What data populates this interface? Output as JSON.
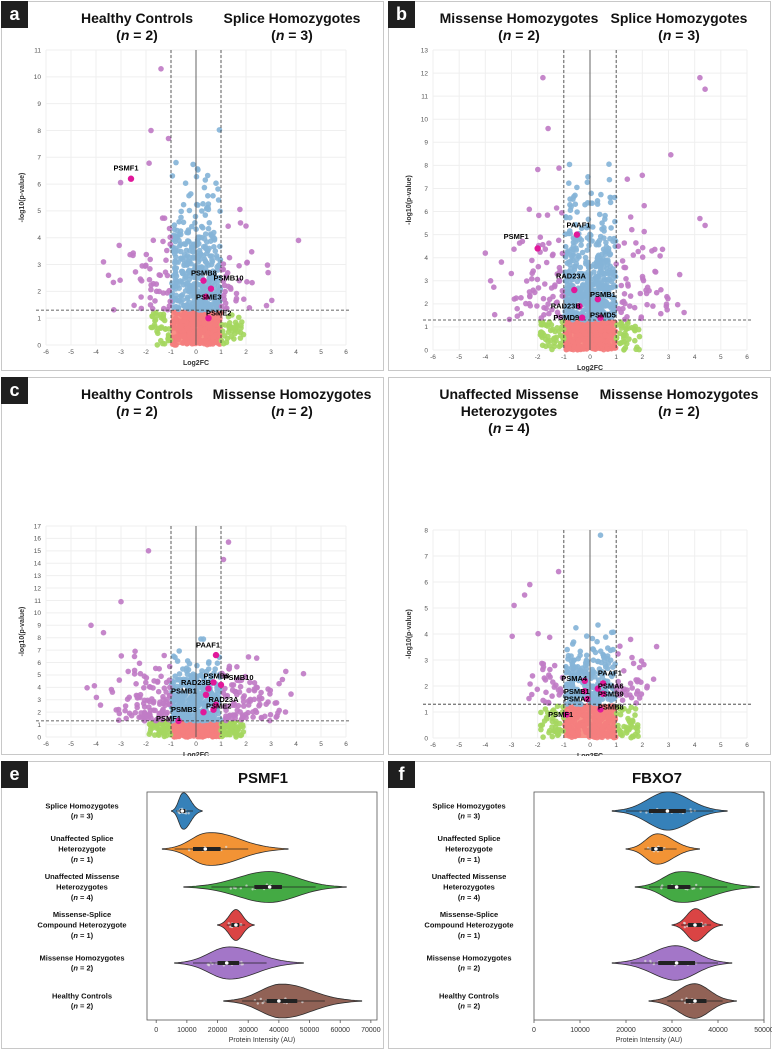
{
  "panels": [
    {
      "id": "a",
      "label": "a",
      "left": {
        "line1": "Healthy Controls",
        "n": "2"
      },
      "right": {
        "line1": "Splice Homozygotes",
        "n": "3"
      }
    },
    {
      "id": "b",
      "label": "b",
      "left": {
        "line1": "Missense Homozygotes",
        "n": "2"
      },
      "right": {
        "line1": "Splice Homozygotes",
        "n": "3"
      }
    },
    {
      "id": "c",
      "label": "c",
      "left": {
        "line1": "Healthy Controls",
        "n": "2"
      },
      "right": {
        "line1": "Missense Homozygotes",
        "n": "2"
      }
    },
    {
      "id": "d",
      "label": "",
      "left": {
        "line1": "Unaffected Missense",
        "line2": "Heterozygotes",
        "n": "4"
      },
      "right": {
        "line1": "Missense Homozygotes",
        "n": "2"
      }
    },
    {
      "id": "e",
      "label": "e"
    },
    {
      "id": "f",
      "label": "f"
    }
  ],
  "colors": {
    "sig": "#c07cc5",
    "fc": "#86b4d8",
    "pv": "#a5d75f",
    "none": "#f47e7e",
    "none_bg": "#f7857a",
    "hl": "#e1189a",
    "hl_label": "#000000"
  },
  "chart_data": [
    {
      "type": "scatter",
      "panel": "a",
      "xlabel": "Log2FC",
      "ylabel": "-log10(p-value)",
      "xlim": [
        -6,
        6
      ],
      "ylim": [
        0,
        11
      ],
      "xticks": [
        -6,
        -5,
        -4,
        -3,
        -2,
        -1,
        0,
        1,
        2,
        3,
        4,
        5,
        6
      ],
      "yticks": [
        0,
        1,
        2,
        3,
        4,
        5,
        6,
        7,
        8,
        9,
        10,
        11
      ],
      "fc_threshold": 1,
      "p_threshold": 1.3,
      "spread": [
        1.7,
        2.4
      ],
      "seed": 11,
      "n_blue": 420,
      "n_purple": 90,
      "n_green": 70,
      "n_red": 320,
      "highlights": [
        {
          "label": "PSMF1",
          "x": -2.6,
          "y": 6.2,
          "lx": -3.3,
          "ly": 6.5
        },
        {
          "label": "PSMB8",
          "x": 0.3,
          "y": 2.4,
          "lx": -0.2,
          "ly": 2.6
        },
        {
          "label": "PSMB10",
          "x": 0.6,
          "y": 2.1,
          "lx": 0.7,
          "ly": 2.4
        },
        {
          "label": "PSME3",
          "x": 0.4,
          "y": 1.8,
          "lx": 0.0,
          "ly": 1.7
        },
        {
          "label": "PSME2",
          "x": 0.5,
          "y": 1.0,
          "lx": 0.4,
          "ly": 1.1
        }
      ],
      "outliers": [
        [
          -1.4,
          10.3
        ],
        [
          -1.8,
          8.0
        ],
        [
          -1.1,
          7.7
        ],
        [
          -0.8,
          6.8
        ],
        [
          4.1,
          3.9
        ],
        [
          -3.7,
          3.1
        ],
        [
          -3.5,
          2.6
        ]
      ]
    },
    {
      "type": "scatter",
      "panel": "b",
      "xlabel": "Log2FC",
      "ylabel": "-log10(p-value)",
      "xlim": [
        -6,
        6
      ],
      "ylim": [
        0,
        13
      ],
      "xticks": [
        -6,
        -5,
        -4,
        -3,
        -2,
        -1,
        0,
        1,
        2,
        3,
        4,
        5,
        6
      ],
      "yticks": [
        0,
        1,
        2,
        3,
        4,
        5,
        6,
        7,
        8,
        9,
        10,
        11,
        12,
        13
      ],
      "fc_threshold": 1,
      "p_threshold": 1.3,
      "spread": [
        1.9,
        3.0
      ],
      "seed": 23,
      "n_blue": 520,
      "n_purple": 140,
      "n_green": 90,
      "n_red": 300,
      "highlights": [
        {
          "label": "PSMF1",
          "x": -2.0,
          "y": 4.4,
          "lx": -3.3,
          "ly": 4.8
        },
        {
          "label": "PAAF1",
          "x": -0.5,
          "y": 5.0,
          "lx": -0.9,
          "ly": 5.3
        },
        {
          "label": "RAD23A",
          "x": -0.6,
          "y": 2.6,
          "lx": -1.3,
          "ly": 3.1
        },
        {
          "label": "PSMB1",
          "x": 0.3,
          "y": 2.2,
          "lx": 0.0,
          "ly": 2.3
        },
        {
          "label": "RAD23B",
          "x": -0.4,
          "y": 1.9,
          "lx": -1.5,
          "ly": 1.8
        },
        {
          "label": "PSMD9",
          "x": -0.3,
          "y": 1.4,
          "lx": -1.4,
          "ly": 1.3
        },
        {
          "label": "PSMD5",
          "x": 0.4,
          "y": 1.4,
          "lx": 0.0,
          "ly": 1.4
        }
      ],
      "outliers": [
        [
          4.2,
          11.8
        ],
        [
          4.4,
          11.3
        ],
        [
          -1.8,
          11.8
        ],
        [
          -1.6,
          9.6
        ],
        [
          4.2,
          5.7
        ],
        [
          4.4,
          5.4
        ],
        [
          -4.0,
          4.2
        ],
        [
          -3.8,
          3.0
        ]
      ]
    },
    {
      "type": "scatter",
      "panel": "c",
      "xlabel": "Log2FC",
      "ylabel": "-log10(p-value)",
      "xlim": [
        -6,
        6
      ],
      "ylim": [
        0,
        17
      ],
      "xticks": [
        -6,
        -5,
        -4,
        -3,
        -2,
        -1,
        0,
        1,
        2,
        3,
        4,
        5,
        6
      ],
      "yticks": [
        0,
        1,
        2,
        3,
        4,
        5,
        6,
        7,
        8,
        9,
        10,
        11,
        12,
        13,
        14,
        15,
        16,
        17
      ],
      "fc_threshold": 1,
      "p_threshold": 1.3,
      "spread": [
        2.1,
        3.0
      ],
      "seed": 37,
      "n_blue": 380,
      "n_purple": 210,
      "n_green": 110,
      "n_red": 300,
      "highlights": [
        {
          "label": "PAAF1",
          "x": 0.8,
          "y": 6.6,
          "lx": 0.0,
          "ly": 7.2
        },
        {
          "label": "PSMB8",
          "x": 0.7,
          "y": 4.4,
          "lx": 0.3,
          "ly": 4.7
        },
        {
          "label": "PSMB10",
          "x": 1.0,
          "y": 4.2,
          "lx": 1.1,
          "ly": 4.6
        },
        {
          "label": "RAD23B",
          "x": 0.5,
          "y": 3.9,
          "lx": -0.6,
          "ly": 4.2
        },
        {
          "label": "PSMB1",
          "x": 0.4,
          "y": 3.4,
          "lx": -1.0,
          "ly": 3.5
        },
        {
          "label": "RAD23A",
          "x": 0.8,
          "y": 2.6,
          "lx": 0.5,
          "ly": 2.8
        },
        {
          "label": "PSME2",
          "x": 0.7,
          "y": 2.2,
          "lx": 0.4,
          "ly": 2.3
        },
        {
          "label": "PSMB3",
          "x": 0.3,
          "y": 2.0,
          "lx": -1.0,
          "ly": 2.0
        },
        {
          "label": "PSMF1",
          "x": -0.7,
          "y": 1.3,
          "lx": -1.6,
          "ly": 1.3
        }
      ],
      "outliers": [
        [
          -1.9,
          15.0
        ],
        [
          1.3,
          15.7
        ],
        [
          1.1,
          14.3
        ],
        [
          4.3,
          5.1
        ],
        [
          -4.2,
          9.0
        ],
        [
          -3.7,
          8.4
        ],
        [
          -3.0,
          10.9
        ]
      ]
    },
    {
      "type": "scatter",
      "panel": "d",
      "xlabel": "Log2FC",
      "ylabel": "-log10(p-value)",
      "xlim": [
        -6,
        6
      ],
      "ylim": [
        0,
        8
      ],
      "xticks": [
        -6,
        -5,
        -4,
        -3,
        -2,
        -1,
        0,
        1,
        2,
        3,
        4,
        5,
        6
      ],
      "yticks": [
        0,
        1,
        2,
        3,
        4,
        5,
        6,
        7,
        8
      ],
      "fc_threshold": 1,
      "p_threshold": 1.3,
      "spread": [
        1.2,
        1.6
      ],
      "seed": 53,
      "n_blue": 230,
      "n_purple": 70,
      "n_green": 80,
      "n_red": 280,
      "highlights": [
        {
          "label": "PAAF1",
          "x": 0.5,
          "y": 2.1,
          "lx": 0.3,
          "ly": 2.4
        },
        {
          "label": "PSMA4",
          "x": -0.2,
          "y": 2.2,
          "lx": -1.1,
          "ly": 2.2
        },
        {
          "label": "PSMA6",
          "x": 0.3,
          "y": 1.9,
          "lx": 0.3,
          "ly": 1.9
        },
        {
          "label": "PSMB1",
          "x": -0.2,
          "y": 1.8,
          "lx": -1.0,
          "ly": 1.7
        },
        {
          "label": "PSMB9",
          "x": 0.5,
          "y": 1.7,
          "lx": 0.3,
          "ly": 1.6
        },
        {
          "label": "PSMA2",
          "x": -0.1,
          "y": 1.5,
          "lx": -1.0,
          "ly": 1.4
        },
        {
          "label": "PSMB8",
          "x": 0.4,
          "y": 1.1,
          "lx": 0.3,
          "ly": 1.1
        },
        {
          "label": "PSMF1",
          "x": -0.9,
          "y": 0.9,
          "lx": -1.6,
          "ly": 0.8
        }
      ],
      "outliers": [
        [
          0.4,
          7.8
        ],
        [
          -1.2,
          6.4
        ],
        [
          -2.3,
          5.9
        ],
        [
          -2.5,
          5.5
        ],
        [
          -2.9,
          5.1
        ]
      ]
    },
    {
      "type": "violin",
      "panel": "e",
      "title": "PSMF1",
      "xlabel": "Protein Intensity (AU)",
      "xlim": [
        -3000,
        72000
      ],
      "xticks": [
        0,
        10000,
        20000,
        30000,
        40000,
        50000,
        60000,
        70000
      ],
      "xtick_labels": [
        "0",
        "10000",
        "20000",
        "30000",
        "40000",
        "50000",
        "60000",
        "70000"
      ],
      "groups": [
        {
          "name": "Splice Homozygotes",
          "name2": "",
          "n": "3",
          "color": "#2c7bb6",
          "min": 5000,
          "max": 15000,
          "q1": 7700,
          "median": 8500,
          "q3": 9500,
          "wlo": 6500,
          "whi": 12000,
          "width": 1.0
        },
        {
          "name": "Unaffected Splice",
          "name2": "Heterozygote",
          "n": "1",
          "color": "#f28e2b",
          "min": 2000,
          "max": 43000,
          "q1": 12000,
          "median": 16000,
          "q3": 21000,
          "wlo": 6000,
          "whi": 30000,
          "width": 0.9
        },
        {
          "name": "Unaffected Missense",
          "name2": "Heterozygotes",
          "n": "4",
          "color": "#3aa63a",
          "min": 9000,
          "max": 62000,
          "q1": 32000,
          "median": 37000,
          "q3": 41000,
          "wlo": 18000,
          "whi": 52000,
          "width": 0.8
        },
        {
          "name": "Missense-Splice",
          "name2": "Compound Heterozygote",
          "n": "1",
          "color": "#d93b3b",
          "min": 20000,
          "max": 32000,
          "q1": 24500,
          "median": 26000,
          "q3": 27000,
          "wlo": 23000,
          "whi": 29000,
          "width": 0.8
        },
        {
          "name": "Missense Homozygotes",
          "name2": "",
          "n": "2",
          "color": "#9f6fc6",
          "min": 6000,
          "max": 48000,
          "q1": 20000,
          "median": 23000,
          "q3": 27000,
          "wlo": 12000,
          "whi": 36000,
          "width": 0.85
        },
        {
          "name": "Healthy Controls",
          "name2": "",
          "n": "2",
          "color": "#8c5a4e",
          "min": 22000,
          "max": 67000,
          "q1": 36000,
          "median": 40000,
          "q3": 46000,
          "wlo": 28000,
          "whi": 55000,
          "width": 0.9
        }
      ]
    },
    {
      "type": "violin",
      "panel": "f",
      "title": "FBXO7",
      "xlabel": "Protein Intensity (AU)",
      "xlim": [
        0,
        50000
      ],
      "xticks": [
        0,
        10000,
        20000,
        30000,
        40000,
        50000
      ],
      "xtick_labels": [
        "0",
        "10000",
        "20000",
        "30000",
        "40000",
        "50000"
      ],
      "groups": [
        {
          "name": "Splice Homozygotes",
          "name2": "",
          "n": "3",
          "color": "#2c7bb6",
          "min": 17000,
          "max": 42000,
          "q1": 25000,
          "median": 29000,
          "q3": 33000,
          "wlo": 20000,
          "whi": 39000,
          "width": 1.0
        },
        {
          "name": "Unaffected Splice",
          "name2": "Heterozygote",
          "n": "1",
          "color": "#f28e2b",
          "min": 20000,
          "max": 36000,
          "q1": 25500,
          "median": 26500,
          "q3": 28000,
          "wlo": 24000,
          "whi": 31000,
          "width": 0.8
        },
        {
          "name": "Unaffected Missense",
          "name2": "Heterozygotes",
          "n": "4",
          "color": "#3aa63a",
          "min": 22000,
          "max": 49000,
          "q1": 29000,
          "median": 31000,
          "q3": 34000,
          "wlo": 25000,
          "whi": 42000,
          "width": 0.85
        },
        {
          "name": "Missense-Splice",
          "name2": "Compound Heterozygote",
          "n": "1",
          "color": "#d93b3b",
          "min": 30000,
          "max": 41000,
          "q1": 33500,
          "median": 35000,
          "q3": 36500,
          "wlo": 32000,
          "whi": 38500,
          "width": 0.85
        },
        {
          "name": "Missense Homozygotes",
          "name2": "",
          "n": "2",
          "color": "#9f6fc6",
          "min": 17000,
          "max": 43000,
          "q1": 27000,
          "median": 31000,
          "q3": 35000,
          "wlo": 21000,
          "whi": 40000,
          "width": 0.9
        },
        {
          "name": "Healthy Controls",
          "name2": "",
          "n": "2",
          "color": "#8c5a4e",
          "min": 25000,
          "max": 44000,
          "q1": 33000,
          "median": 35000,
          "q3": 37500,
          "wlo": 29000,
          "whi": 41000,
          "width": 0.9
        }
      ]
    }
  ]
}
